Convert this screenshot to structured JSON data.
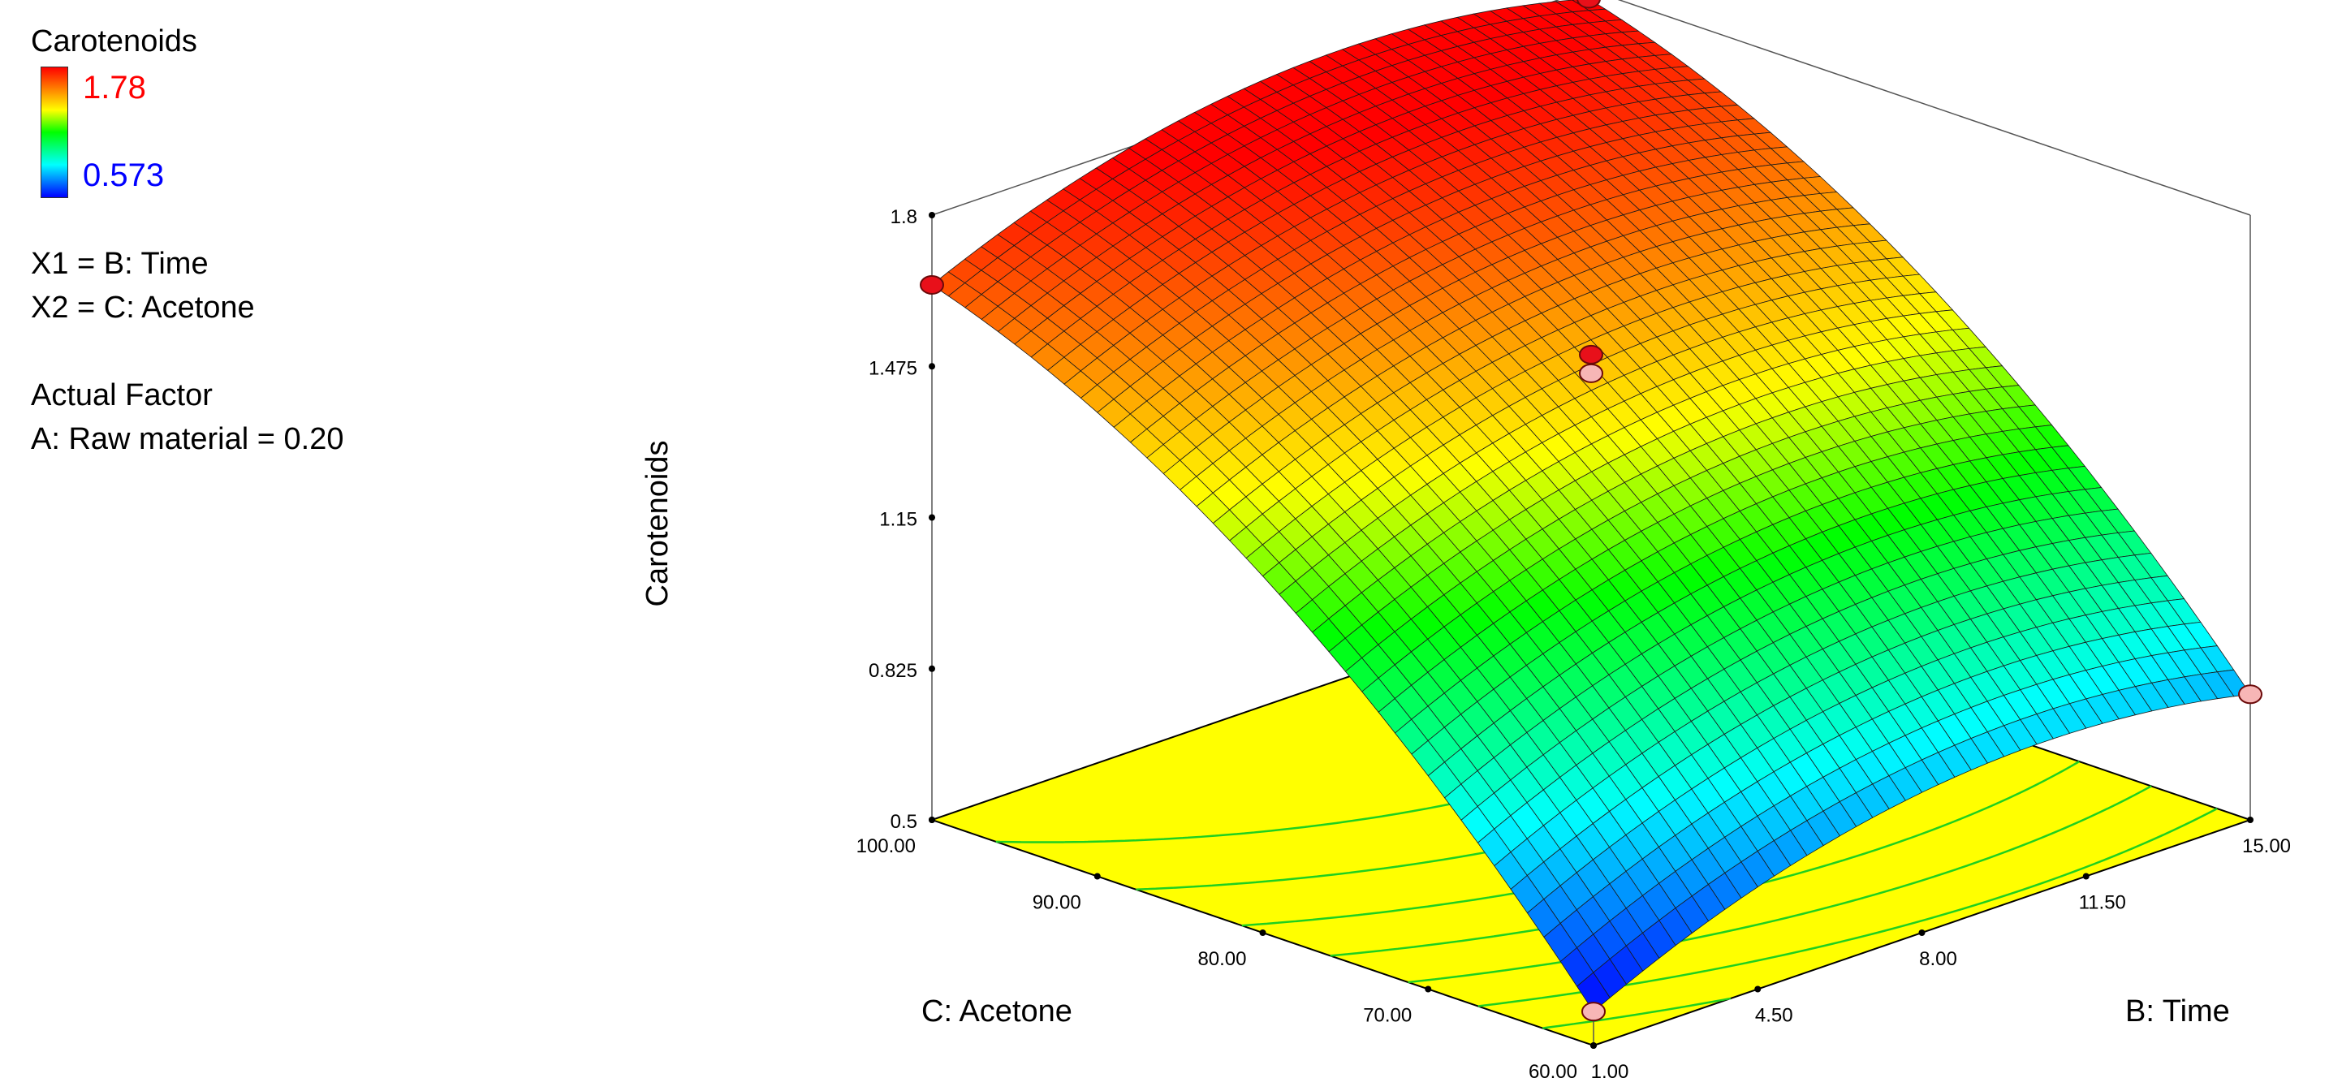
{
  "legend": {
    "title": "Carotenoids",
    "max_label": "1.78",
    "min_label": "0.573",
    "max_color": "#ff0000",
    "min_color": "#0000ff",
    "x1": "X1 = B: Time",
    "x2": "X2 = C: Acetone",
    "actual_factor_title": "Actual Factor",
    "actual_factor": "A: Raw material = 0.20"
  },
  "chart_data": {
    "type": "surface3d",
    "zlabel": "Carotenoids",
    "xlabel": "B: Time",
    "ylabel": "C: Acetone",
    "x_ticks": [
      "1.00",
      "4.50",
      "8.00",
      "11.50",
      "15.00"
    ],
    "y_ticks": [
      "60.00",
      "70.00",
      "80.00",
      "90.00",
      "100.00"
    ],
    "z_ticks": [
      "0.5",
      "0.825",
      "1.15",
      "1.475",
      "1.8"
    ],
    "xlim": [
      1,
      15
    ],
    "ylim": [
      60,
      100
    ],
    "zlim": [
      0.5,
      1.8
    ],
    "color_range": [
      0.573,
      1.78
    ],
    "corner_values": [
      {
        "time": 1,
        "acetone": 60,
        "carotenoids": 0.573
      },
      {
        "time": 15,
        "acetone": 60,
        "carotenoids": 0.77
      },
      {
        "time": 1,
        "acetone": 100,
        "carotenoids": 1.65
      },
      {
        "time": 15,
        "acetone": 100,
        "carotenoids": 1.78
      }
    ],
    "design_points": [
      {
        "time": 1,
        "acetone": 60,
        "carotenoids": 0.573,
        "position": "below"
      },
      {
        "time": 15,
        "acetone": 60,
        "carotenoids": 0.77,
        "position": "below"
      },
      {
        "time": 1,
        "acetone": 100,
        "carotenoids": 1.65,
        "position": "above"
      },
      {
        "time": 15,
        "acetone": 100,
        "carotenoids": 1.78,
        "position": "above"
      },
      {
        "time": 8,
        "acetone": 80,
        "carotenoids": 1.5,
        "position": "above"
      },
      {
        "time": 8,
        "acetone": 80,
        "carotenoids": 1.46,
        "position": "below"
      }
    ],
    "colors": {
      "floor": "#ffff00",
      "contour": "#1fd01f",
      "point_above": "#e8101a",
      "point_below": "#f7b6b6"
    }
  }
}
